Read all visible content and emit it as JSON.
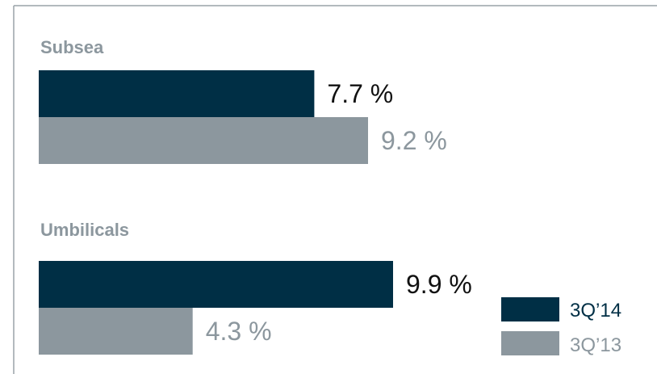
{
  "chart_data": {
    "type": "bar",
    "orientation": "horizontal",
    "value_unit": "%",
    "groups": [
      {
        "label": "Subsea",
        "bars": [
          {
            "series": "3Q'14",
            "value": 7.7,
            "label": "7.7 %"
          },
          {
            "series": "3Q'13",
            "value": 9.2,
            "label": "9.2 %"
          }
        ]
      },
      {
        "label": "Umbilicals",
        "bars": [
          {
            "series": "3Q'14",
            "value": 9.9,
            "label": "9.9 %"
          },
          {
            "series": "3Q'13",
            "value": 4.3,
            "label": "4.3 %"
          }
        ]
      }
    ],
    "series": [
      {
        "name": "3Q’14",
        "color": "#002f45"
      },
      {
        "name": "3Q’13",
        "color": "#8c979e"
      }
    ],
    "legend_position": "bottom-right",
    "grid": false
  }
}
